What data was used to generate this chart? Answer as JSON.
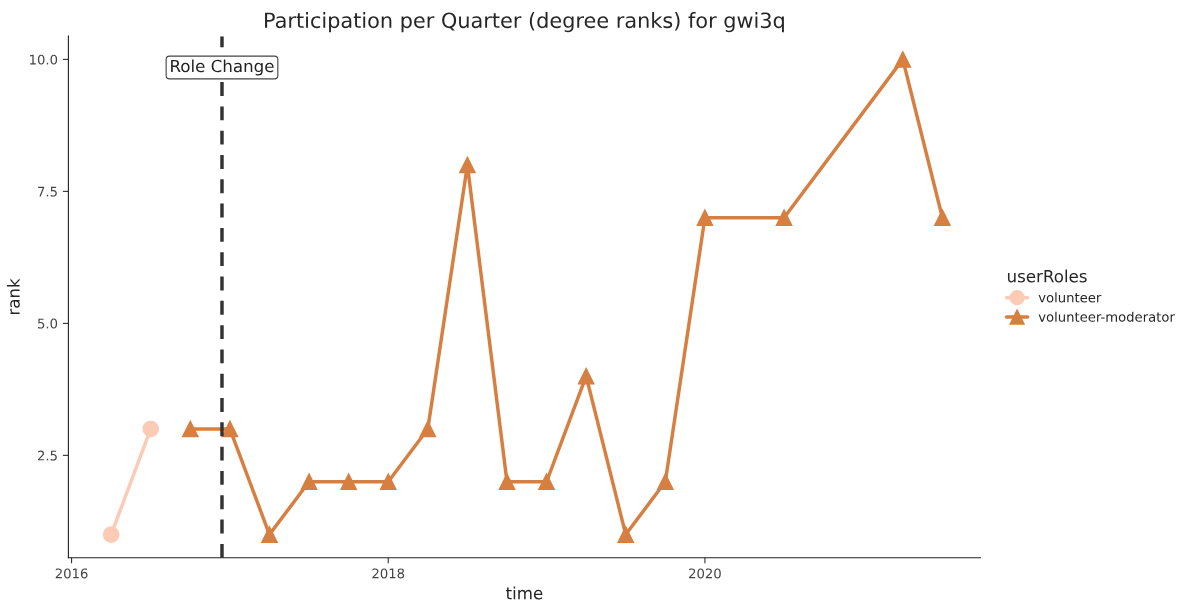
{
  "chart_data": {
    "type": "line",
    "title": "Participation per Quarter (degree ranks) for gwi3q",
    "xlabel": "time",
    "ylabel": "rank",
    "legend_title": "userRoles",
    "series": [
      {
        "name": "volunteer",
        "color": "#fccbb5",
        "marker": "circle",
        "x": [
          2016.25,
          2016.5
        ],
        "values": [
          1,
          3
        ]
      },
      {
        "name": "volunteer-moderator",
        "color": "#d77f40",
        "marker": "triangle",
        "x": [
          2016.75,
          2017.0,
          2017.25,
          2017.5,
          2017.75,
          2018.0,
          2018.25,
          2018.5,
          2018.75,
          2019.0,
          2019.25,
          2019.5,
          2019.75,
          2020.0,
          2020.5,
          2021.25,
          2021.5
        ],
        "values": [
          3,
          3,
          1,
          2,
          2,
          2,
          3,
          8,
          2,
          2,
          4,
          1,
          2,
          7,
          7,
          10,
          7
        ]
      }
    ],
    "xlim": [
      2015.98,
      2021.74
    ],
    "xticks": [
      2016,
      2018,
      2020
    ],
    "ylim": [
      0.56,
      10.44
    ],
    "yticks": [
      {
        "value": 2.5,
        "label": "2.5"
      },
      {
        "value": 5,
        "label": "5.0"
      },
      {
        "value": 7.5,
        "label": "7.5"
      },
      {
        "value": 10,
        "label": "10.0"
      }
    ],
    "ref_lines": [
      {
        "axis": "x",
        "value": 2016.95,
        "label": "Role Change",
        "color": "#333333",
        "line_style": "dashed"
      }
    ],
    "grid": false,
    "legend": "right",
    "line_style": "solid"
  }
}
